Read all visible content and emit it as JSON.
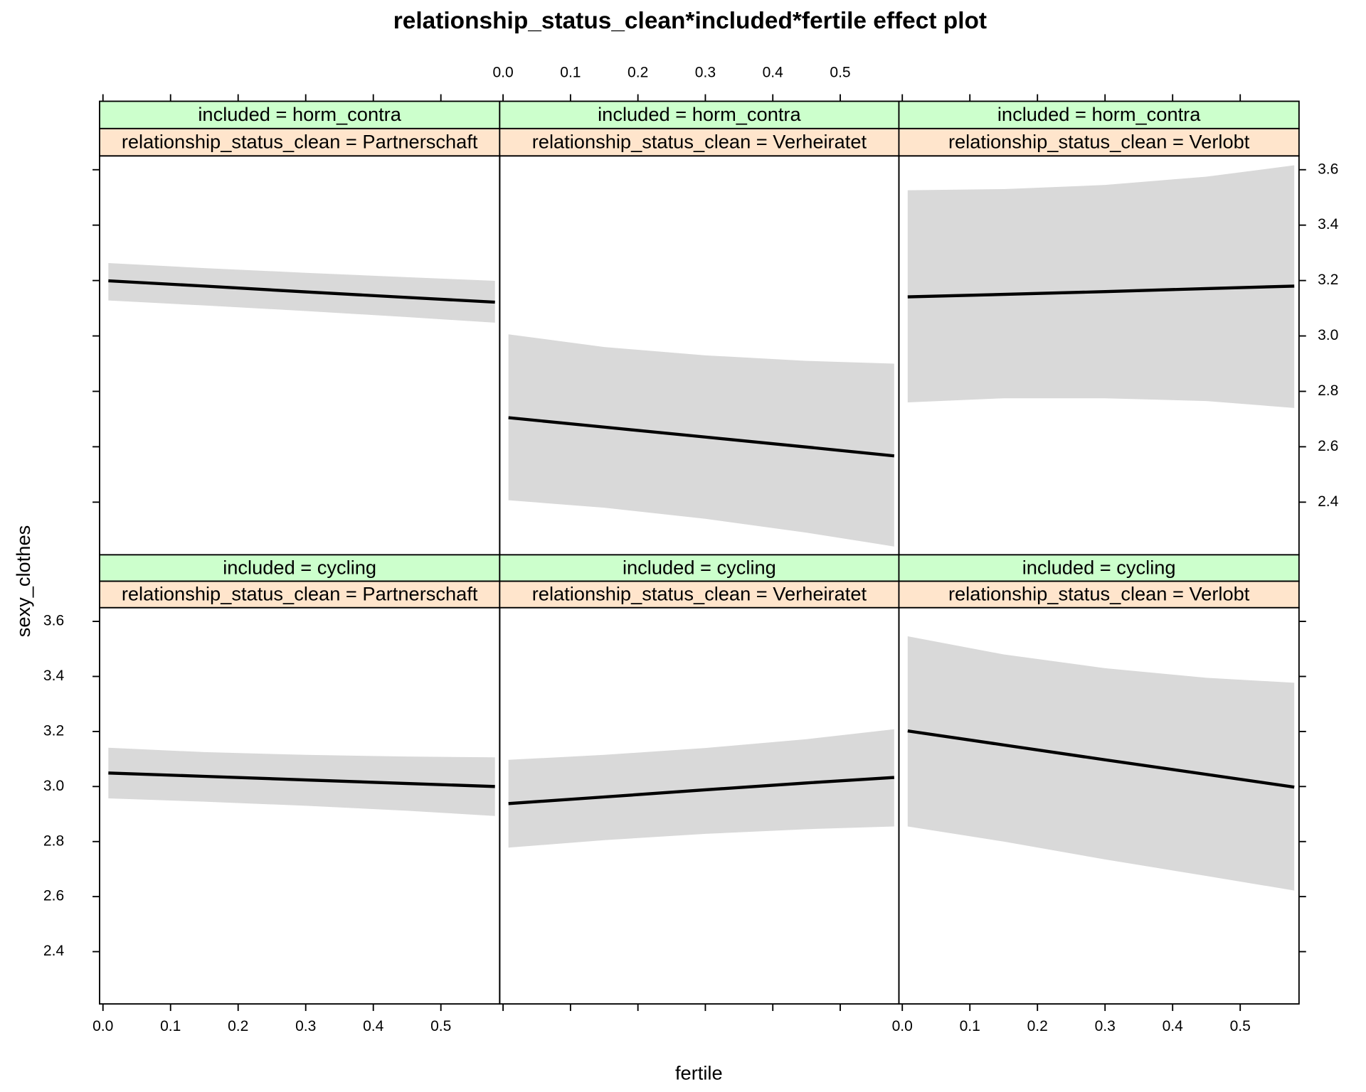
{
  "chart_data": {
    "type": "effect-lattice",
    "title": "relationship_status_clean*included*fertile effect plot",
    "x_label": "fertile",
    "y_label": "sexy_clothes",
    "xlim": [
      -0.005,
      0.587
    ],
    "xticks": [
      {
        "value": 0,
        "label": "0.0"
      },
      0.1,
      0.2,
      0.3,
      0.4,
      0.5
    ],
    "ylim": [
      2.21,
      3.65
    ],
    "yticks": [
      2.4,
      2.6,
      2.8,
      {
        "value": 3,
        "label": "3.0"
      },
      3.2,
      3.4,
      3.6
    ],
    "line_color": "#000000",
    "band_color": "#d9d9d9",
    "strip_top_color": "#ccffcc",
    "strip_bottom_color": "#ffe5cc",
    "x": [
      0.008,
      0.15,
      0.3,
      0.45,
      0.58
    ],
    "panels": [
      {
        "strip_top": "included = horm_contra",
        "strip_bottom": "relationship_status_clean = Partnerschaft",
        "fit": [
          3.199,
          3.18,
          3.159,
          3.139,
          3.122
        ],
        "upper": [
          3.263,
          3.245,
          3.228,
          3.212,
          3.199
        ],
        "lower": [
          3.128,
          3.11,
          3.09,
          3.068,
          3.048
        ]
      },
      {
        "strip_top": "included = horm_contra",
        "strip_bottom": "relationship_status_clean = Verheiratet",
        "fit": [
          2.705,
          2.671,
          2.635,
          2.599,
          2.567
        ],
        "upper": [
          3.006,
          2.96,
          2.93,
          2.91,
          2.9
        ],
        "lower": [
          2.407,
          2.38,
          2.34,
          2.29,
          2.24
        ]
      },
      {
        "strip_top": "included = horm_contra",
        "strip_bottom": "relationship_status_clean = Verlobt",
        "fit": [
          3.141,
          3.15,
          3.16,
          3.171,
          3.18
        ],
        "upper": [
          3.526,
          3.53,
          3.545,
          3.575,
          3.616
        ],
        "lower": [
          2.76,
          2.775,
          2.775,
          2.765,
          2.74
        ]
      },
      {
        "strip_top": "included = cycling",
        "strip_bottom": "relationship_status_clean = Partnerschaft",
        "fit": [
          3.049,
          3.037,
          3.024,
          3.011,
          3.0
        ],
        "upper": [
          3.141,
          3.125,
          3.115,
          3.109,
          3.106
        ],
        "lower": [
          2.957,
          2.945,
          2.93,
          2.912,
          2.893
        ]
      },
      {
        "strip_top": "included = cycling",
        "strip_bottom": "relationship_status_clean = Verheiratet",
        "fit": [
          2.938,
          2.962,
          2.988,
          3.013,
          3.033
        ],
        "upper": [
          3.097,
          3.115,
          3.14,
          3.172,
          3.208
        ],
        "lower": [
          2.778,
          2.805,
          2.828,
          2.845,
          2.855
        ]
      },
      {
        "strip_top": "included = cycling",
        "strip_bottom": "relationship_status_clean = Verlobt",
        "fit": [
          3.202,
          3.151,
          3.097,
          3.044,
          2.998
        ],
        "upper": [
          3.546,
          3.48,
          3.43,
          3.395,
          3.377
        ],
        "lower": [
          2.855,
          2.8,
          2.735,
          2.675,
          2.622
        ]
      }
    ]
  }
}
